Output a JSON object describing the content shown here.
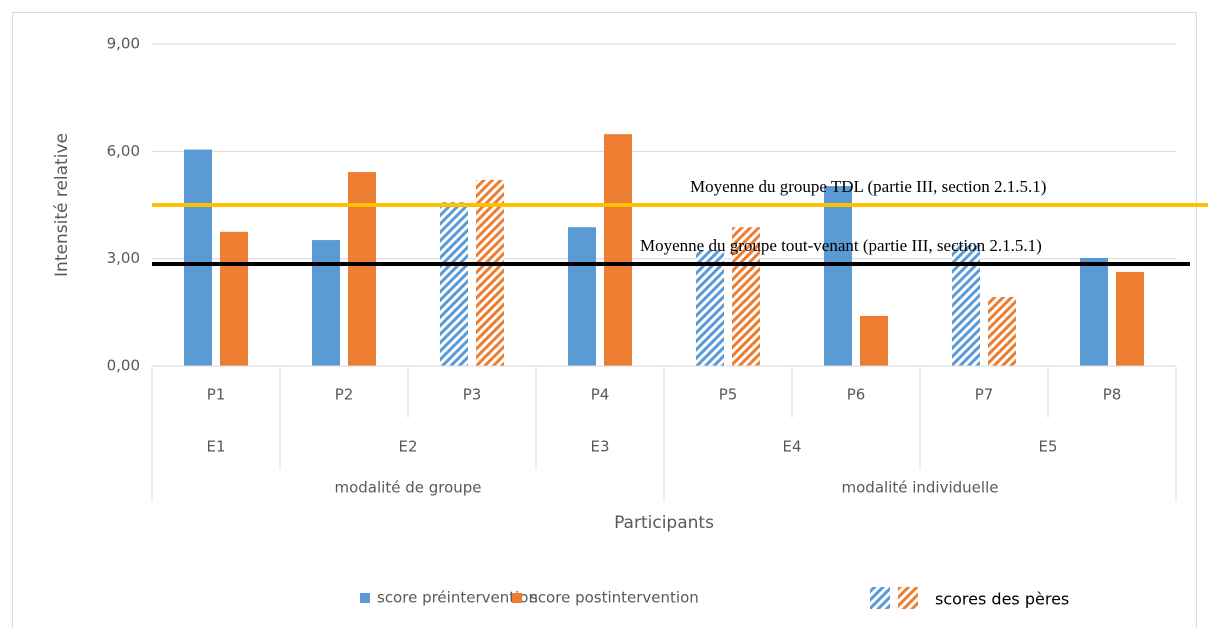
{
  "chart_data": {
    "type": "bar",
    "y_axis_label": "Intensité relative",
    "x_axis_label": "Participants",
    "categories": [
      "P1",
      "P2",
      "P3",
      "P4",
      "P5",
      "P6",
      "P7",
      "P8"
    ],
    "category_groups": [
      "E1",
      "E2",
      "E2",
      "E3",
      "E4",
      "E4",
      "E5",
      "E5"
    ],
    "category_supergroups": [
      "modalité de groupe",
      "modalité de groupe",
      "modalité de groupe",
      "modalité de groupe",
      "modalité individuelle",
      "modalité individuelle",
      "modalité individuelle",
      "modalité individuelle"
    ],
    "hatched": [
      false,
      false,
      true,
      false,
      true,
      false,
      true,
      false
    ],
    "hatch_legend": "scores des pères",
    "series": [
      {
        "name": "score préintervention",
        "color": "#5b9bd5",
        "values": [
          6.05,
          3.52,
          4.58,
          3.88,
          3.24,
          5.03,
          3.38,
          3.02
        ]
      },
      {
        "name": "score postintervention",
        "color": "#ed7d31",
        "values": [
          3.75,
          5.42,
          5.2,
          6.48,
          3.88,
          1.4,
          1.93,
          2.63
        ]
      }
    ],
    "reference_lines": [
      {
        "label": "Moyenne du groupe TDL (partie III, section 2.1.5.1)",
        "value": 4.5,
        "color": "#ffc000"
      },
      {
        "label": "Moyenne du groupe tout-venant (partie III, section 2.1.5.1)",
        "value": 2.85,
        "color": "#000000"
      }
    ],
    "ylim": [
      0,
      9
    ],
    "yticks": [
      {
        "value": 0,
        "label": "0,00"
      },
      {
        "value": 3,
        "label": "3,00"
      },
      {
        "value": 6,
        "label": "6,00"
      },
      {
        "value": 9,
        "label": "9,00"
      }
    ],
    "grid": true
  }
}
